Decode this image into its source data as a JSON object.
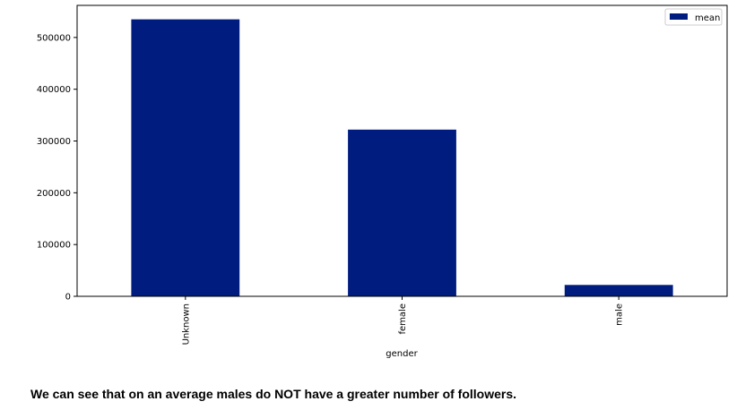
{
  "chart_data": {
    "type": "bar",
    "categories": [
      "Unknown",
      "female",
      "male"
    ],
    "series": [
      {
        "name": "mean",
        "values": [
          535000,
          322000,
          22000
        ]
      }
    ],
    "xlabel": "gender",
    "ylabel": "",
    "ylim": [
      0,
      562000
    ],
    "yticks": [
      0,
      100000,
      200000,
      300000,
      400000,
      500000
    ],
    "ytick_labels": [
      "0",
      "100000",
      "200000",
      "300000",
      "400000",
      "500000"
    ],
    "grid": false,
    "legend_position": "top-right",
    "bar_color": "#001c7f"
  },
  "note": {
    "text": "We can see that on an average males do NOT have a greater number of followers."
  }
}
